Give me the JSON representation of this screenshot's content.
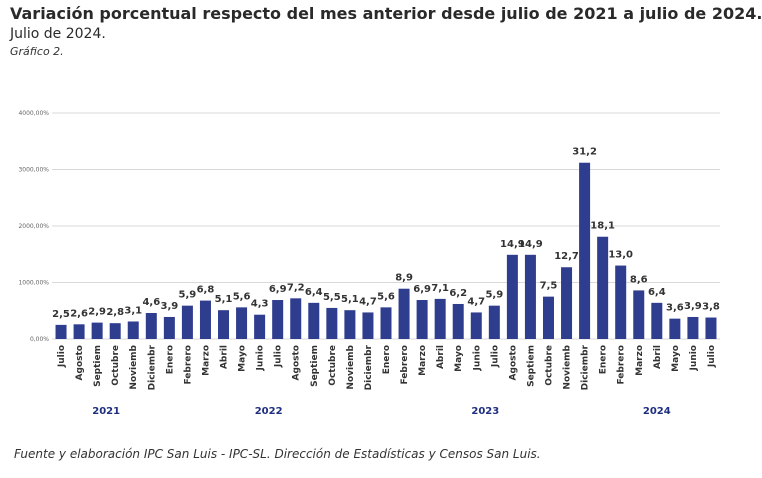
{
  "header": {
    "title": "Variación porcentual respecto del mes anterior desde julio de 2021 a julio de 2024.",
    "subtitle": "Julio de 2024.",
    "figure_label": "Gráfico 2."
  },
  "footer": {
    "source": "Fuente y elaboración IPC San Luis - IPC-SL. Dirección de Estadísticas y Censos San Luis."
  },
  "colors": {
    "bar": "#2f3d8f",
    "grid": "#d9d9d9",
    "year_label": "#1f2f80"
  },
  "chart_data": {
    "type": "bar",
    "title": "",
    "xlabel": "",
    "ylabel": "",
    "ylim": [
      0,
      4000
    ],
    "yticks": [
      "0,00%",
      "1000,00%",
      "2000,00%",
      "3000,00%",
      "4000,00%"
    ],
    "ytick_values": [
      0,
      1000,
      2000,
      3000,
      4000
    ],
    "grid": true,
    "categories": [
      "Julio",
      "Agosto",
      "Septiem",
      "Octubre",
      "Noviemb",
      "Diciembr",
      "Enero",
      "Febrero",
      "Marzo",
      "Abril",
      "Mayo",
      "Junio",
      "Julio",
      "Agosto",
      "Septiem",
      "Octubre",
      "Noviemb",
      "Diciembr",
      "Enero",
      "Febrero",
      "Marzo",
      "Abril",
      "Mayo",
      "Junio",
      "Julio",
      "Agosto",
      "Septiem",
      "Octubre",
      "Noviemb",
      "Diciembr",
      "Enero",
      "Febrero",
      "Marzo",
      "Abril",
      "Mayo",
      "Junio",
      "Julio"
    ],
    "values": [
      250,
      260,
      290,
      280,
      310,
      460,
      390,
      590,
      680,
      510,
      560,
      430,
      690,
      720,
      640,
      550,
      510,
      470,
      560,
      890,
      690,
      710,
      620,
      470,
      590,
      1490,
      1490,
      750,
      1270,
      3120,
      1810,
      1300,
      860,
      640,
      360,
      390,
      380
    ],
    "data_labels": [
      "2,5",
      "2,6",
      "2,9",
      "2,8",
      "3,1",
      "4,6",
      "3,9",
      "5,9",
      "6,8",
      "5,1",
      "5,6",
      "4,3",
      "6,9",
      "7,2",
      "6,4",
      "5,5",
      "5,1",
      "4,7",
      "5,6",
      "8,9",
      "6,9",
      "7,1",
      "6,2",
      "4,7",
      "5,9",
      "14,9",
      "14,9",
      "7,5",
      "12,7",
      "31,2",
      "18,1",
      "13,0",
      "8,6",
      "6,4",
      "3,6",
      "3,9",
      "3,8"
    ],
    "years": [
      {
        "label": "2021",
        "start": 0,
        "end": 5
      },
      {
        "label": "2022",
        "start": 6,
        "end": 17
      },
      {
        "label": "2023",
        "start": 18,
        "end": 29
      },
      {
        "label": "2024",
        "start": 30,
        "end": 36
      }
    ]
  }
}
